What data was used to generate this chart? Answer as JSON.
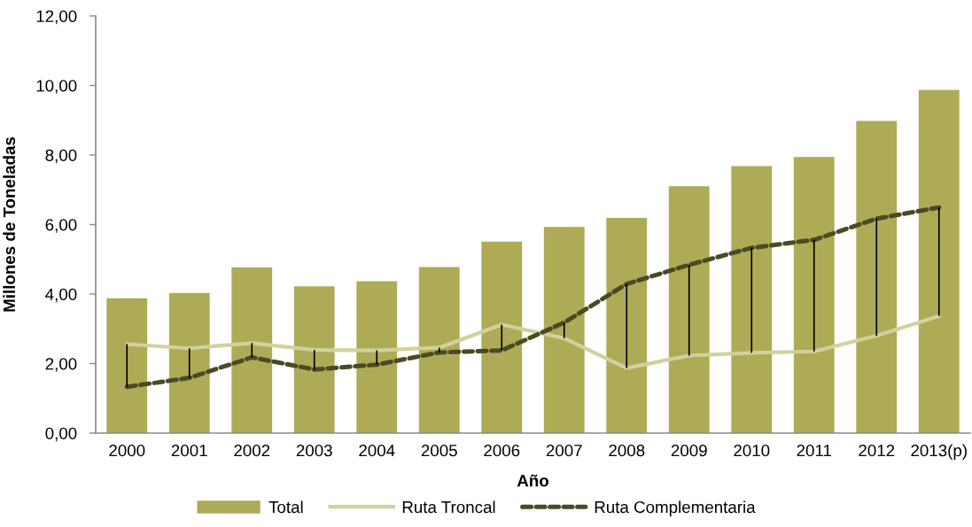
{
  "chart_data": {
    "type": "bar",
    "xlabel": "Año",
    "ylabel": "Millones de Toneladas",
    "categories": [
      "2000",
      "2001",
      "2002",
      "2003",
      "2004",
      "2005",
      "2006",
      "2007",
      "2008",
      "2009",
      "2010",
      "2011",
      "2012",
      "2013(p)"
    ],
    "series": [
      {
        "name": "Total",
        "color": "#aeab57",
        "values": [
          3.88,
          4.03,
          4.77,
          4.22,
          4.37,
          4.78,
          5.51,
          5.93,
          6.19,
          7.1,
          7.68,
          7.94,
          8.98,
          9.87
        ]
      },
      {
        "name": "Ruta Troncal",
        "type": "line",
        "color": "#d3d19b",
        "line_style": "solid",
        "values": [
          2.56,
          2.44,
          2.59,
          2.39,
          2.38,
          2.46,
          3.12,
          2.73,
          1.87,
          2.23,
          2.31,
          2.35,
          2.8,
          3.37
        ]
      },
      {
        "name": "Ruta Complementaria",
        "type": "line",
        "color": "#4a4a24",
        "line_style": "dashed",
        "values": [
          1.33,
          1.59,
          2.18,
          1.83,
          1.97,
          2.32,
          2.38,
          3.18,
          4.29,
          4.84,
          5.33,
          5.56,
          6.17,
          6.49
        ],
        "errors": [
          [
            1.33,
            2.56
          ],
          [
            1.59,
            2.44
          ],
          [
            2.18,
            2.59
          ],
          [
            1.83,
            2.39
          ],
          [
            1.97,
            2.38
          ],
          [
            2.32,
            2.46
          ],
          [
            2.38,
            3.12
          ],
          [
            2.73,
            3.18
          ],
          [
            1.87,
            4.29
          ],
          [
            2.23,
            4.84
          ],
          [
            2.31,
            5.33
          ],
          [
            2.35,
            5.56
          ],
          [
            2.8,
            6.17
          ],
          [
            3.37,
            6.49
          ]
        ]
      }
    ],
    "ylim": [
      0,
      12
    ],
    "yticks": [
      {
        "value": 0,
        "label": "0,00"
      },
      {
        "value": 2,
        "label": "2,00"
      },
      {
        "value": 4,
        "label": "4,00"
      },
      {
        "value": 6,
        "label": "6,00"
      },
      {
        "value": 8,
        "label": "8,00"
      },
      {
        "value": 10,
        "label": "10,00"
      },
      {
        "value": 12,
        "label": "12,00"
      }
    ],
    "grid": false,
    "legend": "bottom"
  }
}
